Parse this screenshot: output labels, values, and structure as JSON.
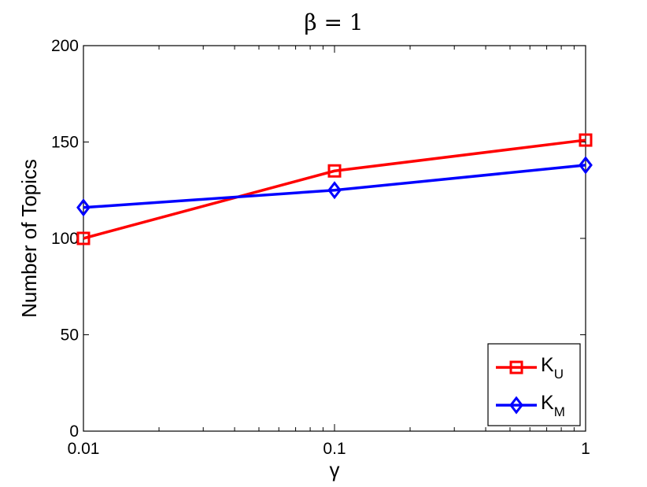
{
  "chart_data": {
    "type": "line",
    "title": "β = 1",
    "xlabel": "γ",
    "ylabel": "Number of Topics",
    "x": [
      0.01,
      0.1,
      1
    ],
    "x_tick_labels": [
      "0.01",
      "0.1",
      "1"
    ],
    "x_scale": "log",
    "xlim": [
      0.01,
      1
    ],
    "ylim": [
      0,
      200
    ],
    "y_ticks": [
      0,
      50,
      100,
      150,
      200
    ],
    "y_tick_labels": [
      "0",
      "50",
      "100",
      "150",
      "200"
    ],
    "grid": false,
    "legend_position": "bottom-right",
    "series": [
      {
        "name": "K_U",
        "label_main": "K",
        "label_sub": "U",
        "color": "#ff0000",
        "marker": "square",
        "values": [
          100,
          135,
          151
        ]
      },
      {
        "name": "K_M",
        "label_main": "K",
        "label_sub": "M",
        "color": "#0000ff",
        "marker": "diamond",
        "values": [
          116,
          125,
          138
        ]
      }
    ]
  }
}
